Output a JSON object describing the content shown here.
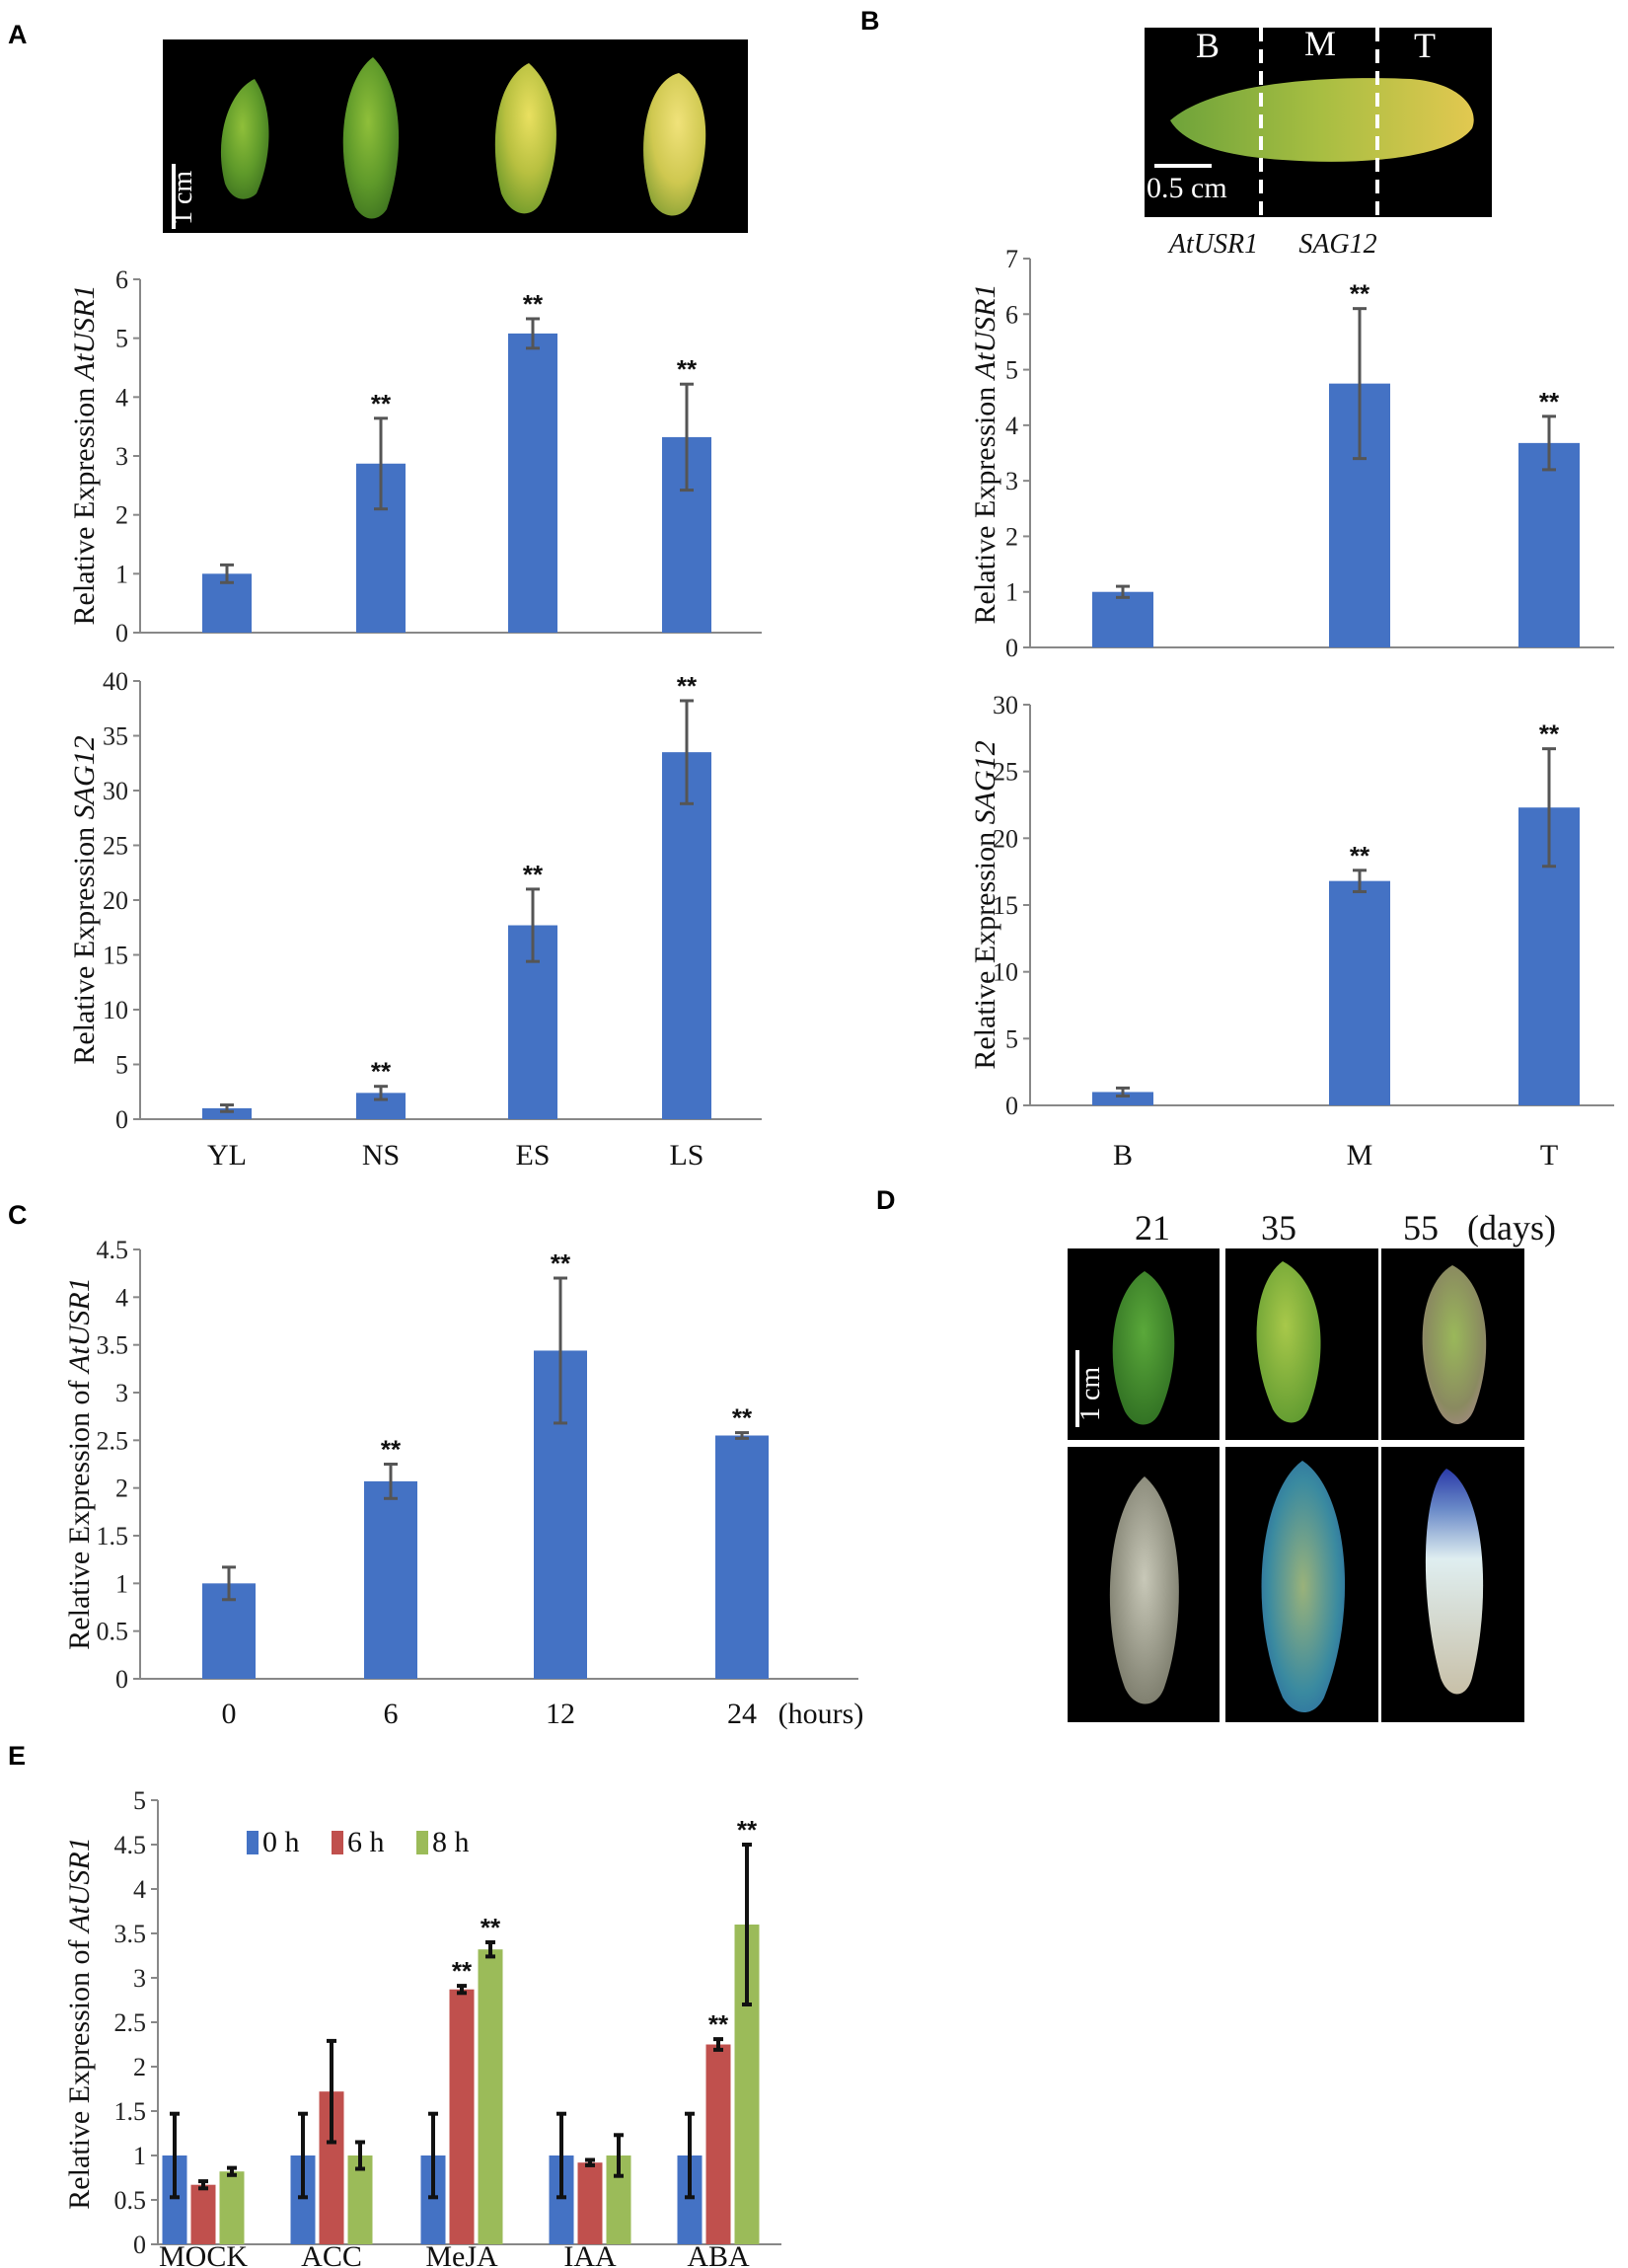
{
  "panel_labels": {
    "a": "A",
    "b": "B",
    "c": "C",
    "d": "D",
    "e": "E"
  },
  "photos": {
    "a_scale": "1 cm",
    "b_scale": "0.5 cm",
    "b_regions": [
      "B",
      "M",
      "T"
    ],
    "b_captions": [
      "AtUSR1",
      "SAG12"
    ],
    "d_days": [
      "21",
      "35",
      "55"
    ],
    "d_unit": "(days)",
    "d_scale": "1 cm"
  },
  "colors": {
    "blue": "#4472C4",
    "red": "#C0504D",
    "green": "#9BBB59",
    "error": "#555555",
    "axis": "#888888"
  },
  "chart_data": [
    {
      "id": "A1",
      "type": "bar",
      "panel": "A",
      "ylabel_prefix": "Relative Expression ",
      "ylabel_gene": "AtUSR1",
      "categories": [
        "YL",
        "NS",
        "ES",
        "LS"
      ],
      "show_categories": false,
      "values": [
        1.0,
        2.87,
        5.08,
        3.32
      ],
      "errors": [
        0.15,
        0.77,
        0.25,
        0.9
      ],
      "significance": [
        "",
        "**",
        "**",
        "**"
      ],
      "ylim": [
        0,
        6
      ],
      "ticks": [
        0,
        1,
        2,
        3,
        4,
        5,
        6
      ]
    },
    {
      "id": "A2",
      "type": "bar",
      "panel": "A",
      "ylabel_prefix": "Relative Expression ",
      "ylabel_gene": "SAG12",
      "categories": [
        "YL",
        "NS",
        "ES",
        "LS"
      ],
      "show_categories": true,
      "values": [
        1.0,
        2.4,
        17.7,
        33.5
      ],
      "errors": [
        0.3,
        0.6,
        3.3,
        4.7
      ],
      "significance": [
        "",
        "**",
        "**",
        "**"
      ],
      "ylim": [
        0,
        40
      ],
      "ticks": [
        0,
        5,
        10,
        15,
        20,
        25,
        30,
        35,
        40
      ]
    },
    {
      "id": "B1",
      "type": "bar",
      "panel": "B",
      "ylabel_prefix": "Relative Expression ",
      "ylabel_gene": "AtUSR1",
      "categories": [
        "B",
        "M",
        "T"
      ],
      "show_categories": false,
      "values": [
        1.0,
        4.75,
        3.68
      ],
      "errors": [
        0.1,
        1.35,
        0.48
      ],
      "significance": [
        "",
        "**",
        "**"
      ],
      "ylim": [
        0,
        7
      ],
      "ticks": [
        0,
        1,
        2,
        3,
        4,
        5,
        6,
        7
      ]
    },
    {
      "id": "B2",
      "type": "bar",
      "panel": "B",
      "ylabel_prefix": "Relative Expression ",
      "ylabel_gene": "SAG12",
      "categories": [
        "B",
        "M",
        "T"
      ],
      "show_categories": true,
      "values": [
        1.0,
        16.8,
        22.3
      ],
      "errors": [
        0.3,
        0.8,
        4.4
      ],
      "significance": [
        "",
        "**",
        "**"
      ],
      "ylim": [
        0,
        30
      ],
      "ticks": [
        0,
        5,
        10,
        15,
        20,
        25,
        30
      ]
    },
    {
      "id": "C",
      "type": "bar",
      "panel": "C",
      "ylabel_prefix": "Relative Expression of ",
      "ylabel_gene": "AtUSR1",
      "categories": [
        "0",
        "6",
        "12",
        "24"
      ],
      "show_categories": true,
      "xunit": "(hours)",
      "values": [
        1.0,
        2.07,
        3.44,
        2.55
      ],
      "errors": [
        0.17,
        0.18,
        0.76,
        0.03
      ],
      "significance": [
        "",
        "**",
        "**",
        "**"
      ],
      "ylim": [
        0,
        4.5
      ],
      "ticks": [
        "0",
        "0.5",
        "1",
        "1.5",
        "2",
        "2.5",
        "3",
        "3.5",
        "4",
        "4.5"
      ]
    },
    {
      "id": "E",
      "type": "bar",
      "panel": "E",
      "ylabel_prefix": "Relative Expression of ",
      "ylabel_gene": "AtUSR1",
      "categories": [
        "MOCK",
        "ACC",
        "MeJA",
        "IAA",
        "ABA"
      ],
      "show_categories": true,
      "series": [
        {
          "name": "0 h",
          "values": [
            1.0,
            1.0,
            1.0,
            1.0,
            1.0
          ],
          "errors": [
            0.47,
            0.47,
            0.47,
            0.47,
            0.47
          ],
          "significance": [
            "",
            "",
            "",
            "",
            ""
          ]
        },
        {
          "name": "6 h",
          "values": [
            0.67,
            1.72,
            2.87,
            0.92,
            2.25
          ],
          "errors": [
            0.04,
            0.57,
            0.04,
            0.03,
            0.06
          ],
          "significance": [
            "",
            "",
            "**",
            "",
            "**"
          ]
        },
        {
          "name": "8 h",
          "values": [
            0.82,
            1.0,
            3.32,
            1.0,
            3.6
          ],
          "errors": [
            0.04,
            0.15,
            0.08,
            0.23,
            0.9
          ],
          "significance": [
            "",
            "",
            "**",
            "",
            "**"
          ]
        }
      ],
      "ylim": [
        0,
        5
      ],
      "ticks": [
        "0",
        "0.5",
        "1",
        "1.5",
        "2",
        "2.5",
        "3",
        "3.5",
        "4",
        "4.5",
        "5"
      ]
    }
  ]
}
